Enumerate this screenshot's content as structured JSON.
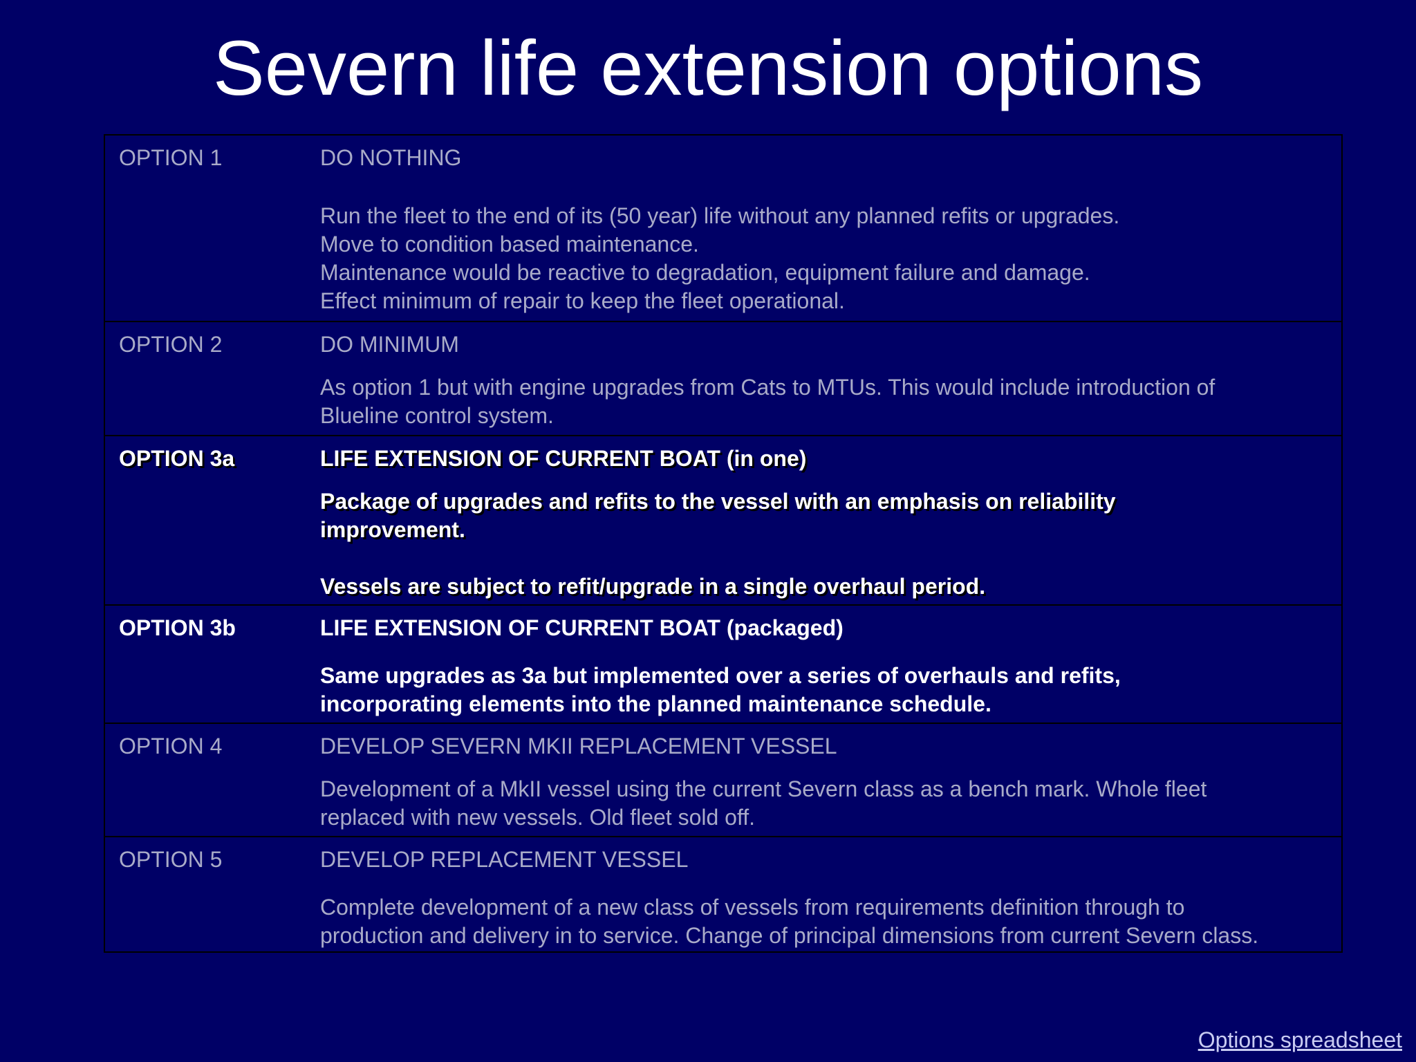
{
  "title": "Severn life extension options",
  "options": [
    {
      "label": "OPTION 1",
      "heading": "DO NOTHING",
      "lines": [
        "Run the fleet to the end of its (50 year) life without any planned refits or upgrades.",
        "Move to condition based maintenance.",
        "Maintenance would be reactive to degradation, equipment failure and damage.",
        "Effect minimum of repair to keep the fleet operational."
      ]
    },
    {
      "label": "OPTION 2",
      "heading": "DO MINIMUM",
      "lines": [
        "As option 1 but with engine upgrades from Cats to MTUs. This would include introduction of",
        "Blueline control system."
      ]
    },
    {
      "label": "OPTION 3a",
      "heading": "LIFE EXTENSION OF CURRENT BOAT (in one)",
      "lines": [
        "Package of upgrades and refits to the vessel with an emphasis on reliability",
        "improvement.",
        "Vessels are subject to refit/upgrade in a single overhaul period."
      ]
    },
    {
      "label": "OPTION 3b",
      "heading": "LIFE EXTENSION OF CURRENT BOAT (packaged)",
      "lines": [
        "Same upgrades as 3a but implemented over a series of overhauls and refits,",
        "incorporating elements into the planned maintenance schedule."
      ]
    },
    {
      "label": "OPTION 4",
      "heading": "DEVELOP SEVERN MKII REPLACEMENT VESSEL",
      "lines": [
        "Development of a MkII vessel using the current Severn class as a bench mark.  Whole fleet",
        "replaced with new vessels.  Old fleet sold off."
      ]
    },
    {
      "label": "OPTION 5",
      "heading": "DEVELOP REPLACEMENT VESSEL",
      "lines": [
        "Complete development of a new class of vessels from requirements definition through to",
        "production and delivery in to service.  Change of principal dimensions from current Severn class."
      ]
    }
  ],
  "link": "Options spreadsheet",
  "colors": {
    "background": "#000066",
    "muted_text": "#a9abc8",
    "highlight_text": "#ffffff",
    "link": "#c9ccf2"
  }
}
